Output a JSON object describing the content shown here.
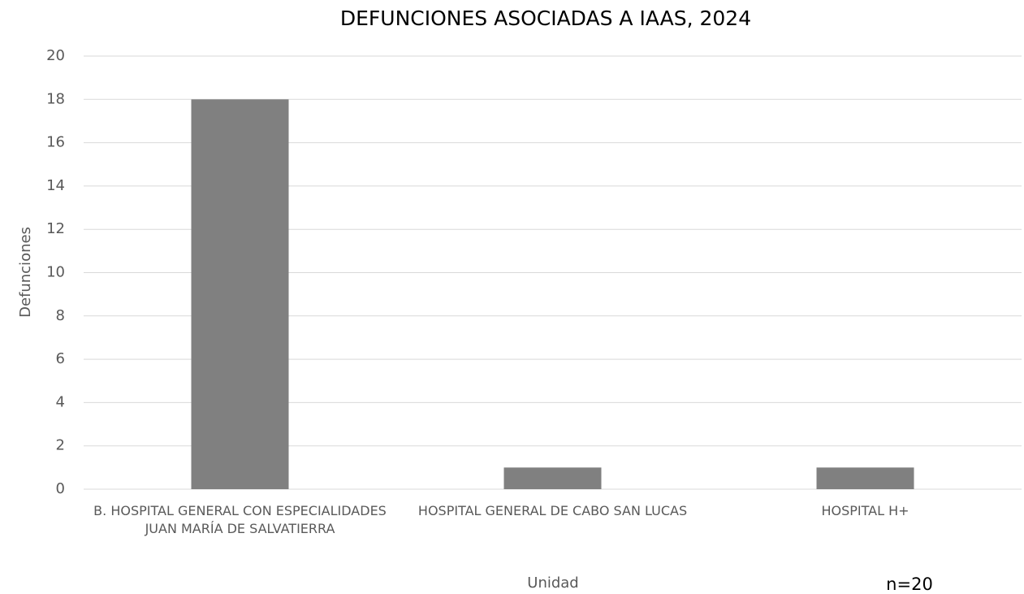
{
  "chart_data": {
    "type": "bar",
    "title": "DEFUNCIONES ASOCIADAS A IAAS, 2024",
    "x_label": "Unidad",
    "y_label": "Defunciones",
    "annotation": "n=20",
    "categories": [
      "B. HOSPITAL GENERAL CON ESPECIALIDADES JUAN MARÍA DE SALVATIERRA",
      "HOSPITAL GENERAL DE CABO SAN LUCAS",
      "HOSPITAL H+"
    ],
    "values": [
      18,
      1,
      1
    ],
    "color": "#808080",
    "ylim": [
      0,
      20
    ],
    "yticks": [
      0,
      2,
      4,
      6,
      8,
      10,
      12,
      14,
      16,
      18,
      20
    ],
    "grid": true
  }
}
